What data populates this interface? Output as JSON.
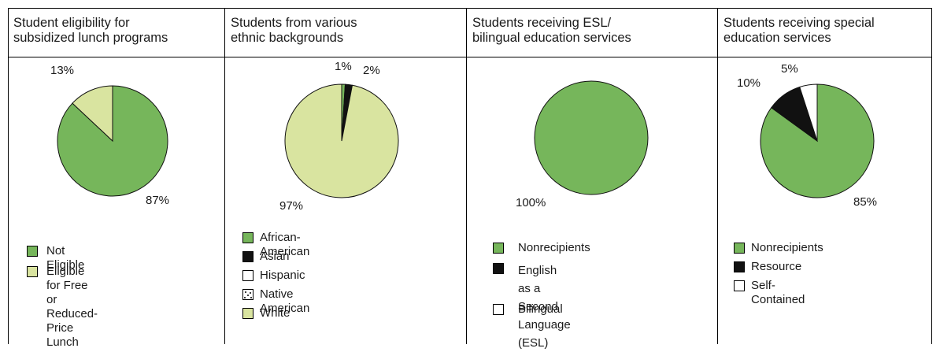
{
  "colors": {
    "green": "#76b65b",
    "light": "#d9e4a0",
    "black": "#111111",
    "white": "#ffffff"
  },
  "chart_data": [
    {
      "type": "pie",
      "title": "Student eligibility for\nsubsidized lunch programs",
      "slices": [
        {
          "label": "Not Eligible",
          "value": 87,
          "display": "87%",
          "color": "#76b65b"
        },
        {
          "label": "Eligible for Free or\nReduced-Price Lunch",
          "value": 13,
          "display": "13%",
          "color": "#d9e4a0"
        }
      ]
    },
    {
      "type": "pie",
      "title": "Students from various\nethnic backgrounds",
      "slices": [
        {
          "label": "African-American",
          "value": 1,
          "display": "1%",
          "color": "#76b65b"
        },
        {
          "label": "Asian",
          "value": 2,
          "display": "2%",
          "color": "#111111"
        },
        {
          "label": "Hispanic",
          "value": 0,
          "display": "",
          "color": "#ffffff"
        },
        {
          "label": "Native American",
          "value": 0,
          "display": "",
          "color": "dots"
        },
        {
          "label": "White",
          "value": 97,
          "display": "97%",
          "color": "#d9e4a0"
        }
      ]
    },
    {
      "type": "pie",
      "title": "Students receiving ESL/\nbilingual education services",
      "slices": [
        {
          "label": "Nonrecipients",
          "value": 100,
          "display": "100%",
          "color": "#76b65b"
        },
        {
          "label": "English as a\nSecond Language (ESL)",
          "value": 0,
          "display": "",
          "color": "#111111"
        },
        {
          "label": "Bilingual",
          "value": 0,
          "display": "",
          "color": "#ffffff"
        }
      ]
    },
    {
      "type": "pie",
      "title": "Students receiving special\neducation services",
      "slices": [
        {
          "label": "Nonrecipients",
          "value": 85,
          "display": "85%",
          "color": "#76b65b"
        },
        {
          "label": "Resource",
          "value": 10,
          "display": "10%",
          "color": "#111111"
        },
        {
          "label": "Self-Contained",
          "value": 5,
          "display": "5%",
          "color": "#ffffff"
        }
      ]
    }
  ]
}
